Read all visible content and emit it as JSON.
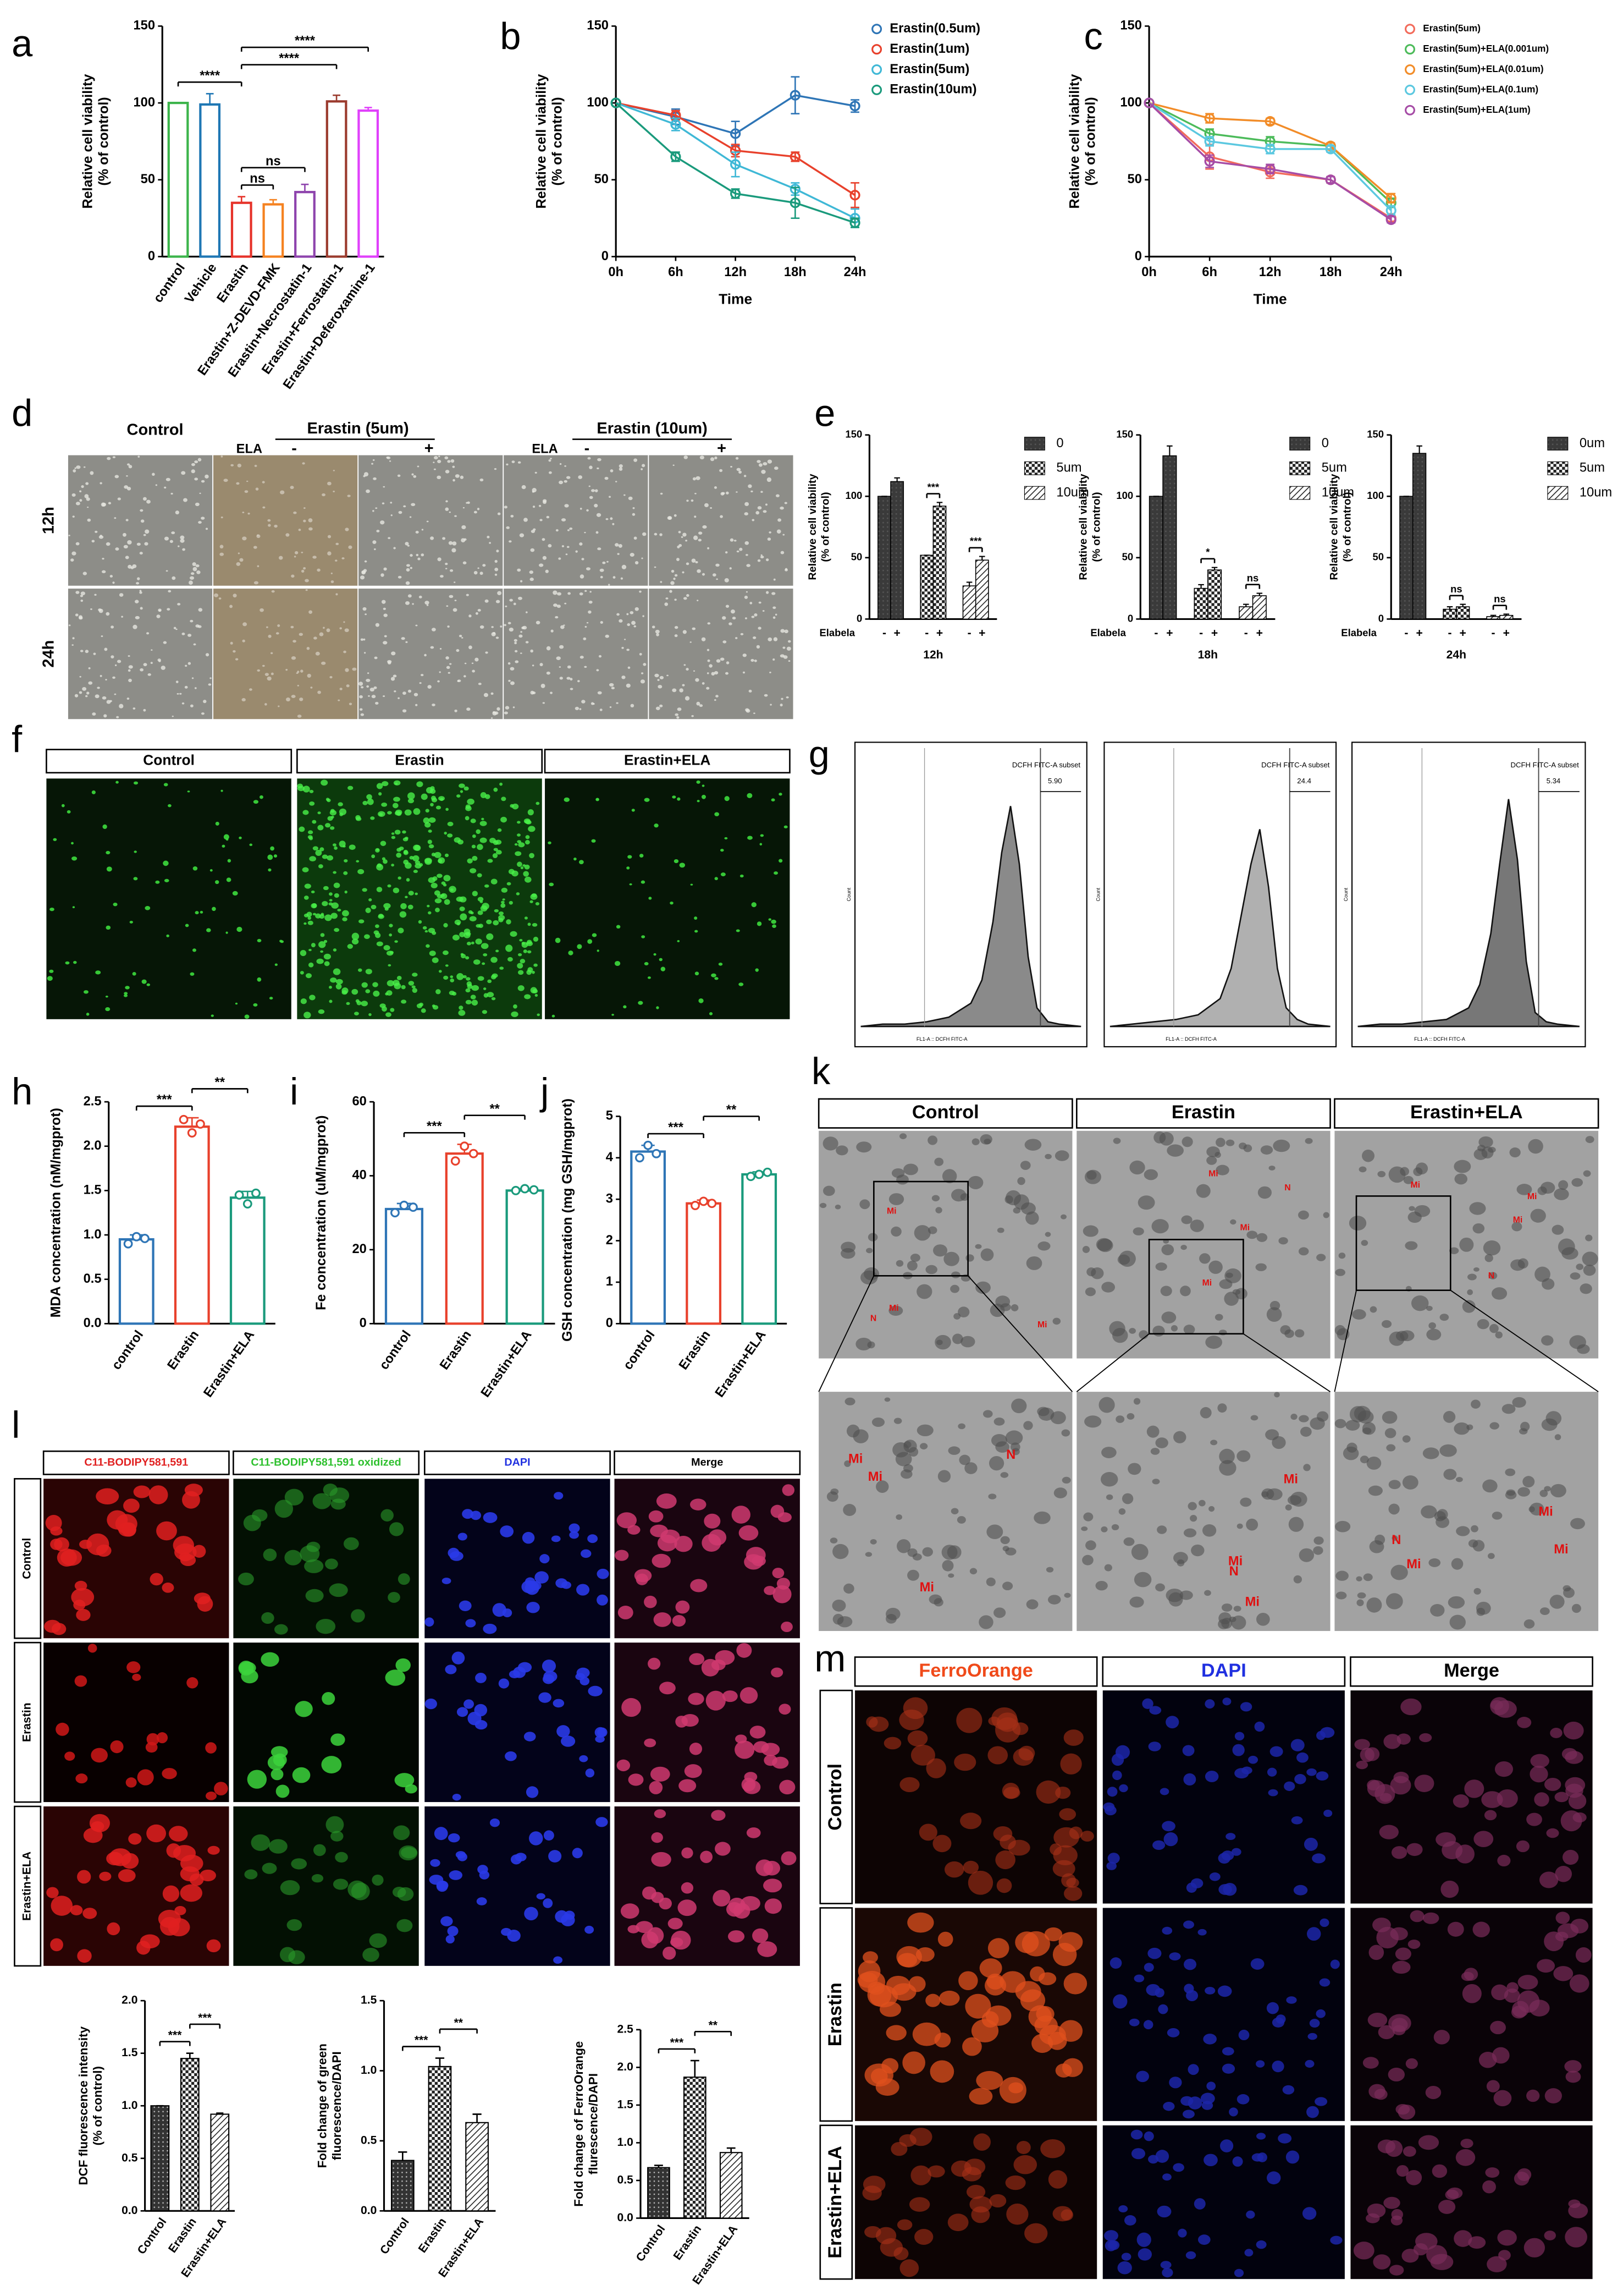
{
  "chart_data": [
    {
      "panel": "a",
      "type": "bar",
      "bar_style": "outline",
      "categories": [
        "control",
        "Vehicle",
        "Erastin",
        "Erastin+Z-DEVD-FMK",
        "Erastin+Necrostatin-1",
        "Erastin+Ferrostatin-1",
        "Erastin+Deferoxamine-1"
      ],
      "values": [
        100,
        99,
        35,
        34,
        42,
        101,
        95
      ],
      "errors": [
        0,
        7,
        4,
        3,
        5,
        4,
        2
      ],
      "colors": [
        "#3cb44b",
        "#1f77b4",
        "#e6332a",
        "#f58220",
        "#8e44ad",
        "#9b3b2e",
        "#e040fb"
      ],
      "ylim": [
        0,
        150
      ],
      "yticks": [
        0,
        50,
        100,
        150
      ],
      "ylabel": [
        "Relative cell viability",
        "(% of control)"
      ],
      "annotations": [
        {
          "text": "ns",
          "between": [
            2,
            3
          ]
        },
        {
          "text": "ns",
          "between": [
            2,
            4
          ]
        },
        {
          "text": "****",
          "between": [
            0,
            2
          ]
        },
        {
          "text": "****",
          "between": [
            2,
            5
          ]
        },
        {
          "text": "****",
          "between": [
            2,
            6
          ]
        }
      ]
    },
    {
      "panel": "b",
      "type": "line",
      "categories": [
        "0h",
        "6h",
        "12h",
        "18h",
        "24h"
      ],
      "xlabel": "Time",
      "ylabel": [
        "Relative cell viability",
        "(% of control)"
      ],
      "ylim": [
        0,
        150
      ],
      "yticks": [
        0,
        50,
        100,
        150
      ],
      "series": [
        {
          "name": "Erastin(0.5um)",
          "color": "#2e75b6",
          "values": [
            100,
            91,
            80,
            105,
            98
          ],
          "errors": [
            0,
            5,
            8,
            12,
            4
          ]
        },
        {
          "name": "Erastin(1um)",
          "color": "#e8412c",
          "values": [
            100,
            92,
            69,
            65,
            40
          ],
          "errors": [
            0,
            3,
            4,
            3,
            8
          ]
        },
        {
          "name": "Erastin(5um)",
          "color": "#3fb8d6",
          "values": [
            100,
            86,
            60,
            44,
            25
          ],
          "errors": [
            0,
            4,
            8,
            4,
            6
          ]
        },
        {
          "name": "Erastin(10um)",
          "color": "#1a9a7c",
          "values": [
            100,
            65,
            41,
            35,
            22
          ],
          "errors": [
            0,
            3,
            3,
            10,
            3
          ]
        }
      ]
    },
    {
      "panel": "c",
      "type": "line",
      "categories": [
        "0h",
        "6h",
        "12h",
        "18h",
        "24h"
      ],
      "xlabel": "Time",
      "ylabel": [
        "Relative cell viability",
        "(% of control)"
      ],
      "ylim": [
        0,
        150
      ],
      "yticks": [
        0,
        50,
        100,
        150
      ],
      "series": [
        {
          "name": "Erastin(5um)",
          "color": "#f26b5b",
          "values": [
            100,
            65,
            55,
            50,
            25
          ],
          "errors": [
            0,
            8,
            4,
            2,
            2
          ]
        },
        {
          "name": "Erastin(5um)+ELA(0.001um)",
          "color": "#4cbb5a",
          "values": [
            100,
            80,
            75,
            72,
            35
          ],
          "errors": [
            0,
            3,
            3,
            2,
            3
          ]
        },
        {
          "name": "Erastin(5um)+ELA(0.01um)",
          "color": "#f28c28",
          "values": [
            100,
            90,
            88,
            72,
            38
          ],
          "errors": [
            0,
            3,
            2,
            2,
            3
          ]
        },
        {
          "name": "Erastin(5um)+ELA(0.1um)",
          "color": "#5bc8e0",
          "values": [
            100,
            75,
            70,
            70,
            30
          ],
          "errors": [
            0,
            3,
            3,
            2,
            3
          ]
        },
        {
          "name": "Erastin(5um)+ELA(1um)",
          "color": "#a64ca6",
          "values": [
            100,
            62,
            57,
            50,
            24
          ],
          "errors": [
            0,
            4,
            3,
            2,
            2
          ]
        }
      ]
    },
    {
      "panel": "e",
      "type": "grouped_bar",
      "categories": [
        "-",
        "+"
      ],
      "group_label": "Elabela",
      "xlabel": "12h",
      "ylabel": [
        "Relative cell viability",
        "(% of control)"
      ],
      "ylim": [
        0,
        150
      ],
      "yticks": [
        0,
        50,
        100,
        150
      ],
      "series": [
        {
          "name": "0",
          "fill": "solid",
          "values": [
            100,
            112
          ],
          "errors": [
            0,
            3
          ]
        },
        {
          "name": "5um",
          "fill": "checker",
          "values": [
            52,
            92
          ],
          "errors": [
            0,
            3
          ]
        },
        {
          "name": "10um",
          "fill": "hatch",
          "values": [
            27,
            48
          ],
          "errors": [
            3,
            3
          ]
        }
      ],
      "annotations": [
        {
          "text": "***",
          "series": 1
        },
        {
          "text": "***",
          "series": 2
        }
      ]
    },
    {
      "type": "grouped_bar",
      "categories": [
        "-",
        "+"
      ],
      "group_label": "Elabela",
      "xlabel": "18h",
      "ylabel": [
        "Relative cell viability",
        "(% of control)"
      ],
      "ylim": [
        0,
        150
      ],
      "yticks": [
        0,
        50,
        100,
        150
      ],
      "series": [
        {
          "name": "0",
          "fill": "solid",
          "values": [
            100,
            133
          ],
          "errors": [
            0,
            8
          ]
        },
        {
          "name": "5um",
          "fill": "checker",
          "values": [
            25,
            40
          ],
          "errors": [
            3,
            2
          ]
        },
        {
          "name": "10um",
          "fill": "hatch",
          "values": [
            10,
            19
          ],
          "errors": [
            2,
            2
          ]
        }
      ],
      "annotations": [
        {
          "text": "*",
          "series": 1
        },
        {
          "text": "ns",
          "series": 2
        }
      ]
    },
    {
      "type": "grouped_bar",
      "categories": [
        "-",
        "+"
      ],
      "group_label": "Elabela",
      "xlabel": "24h",
      "ylabel": [
        "Relative cell viability",
        "(% of control)"
      ],
      "ylim": [
        0,
        150
      ],
      "yticks": [
        0,
        50,
        100,
        150
      ],
      "series": [
        {
          "name": "0um",
          "fill": "solid",
          "values": [
            100,
            135
          ],
          "errors": [
            0,
            6
          ]
        },
        {
          "name": "5um",
          "fill": "checker",
          "values": [
            8,
            10
          ],
          "errors": [
            2,
            2
          ]
        },
        {
          "name": "10um",
          "fill": "hatch",
          "values": [
            2,
            3
          ],
          "errors": [
            1,
            1
          ]
        }
      ],
      "annotations": [
        {
          "text": "ns",
          "series": 1
        },
        {
          "text": "ns",
          "series": 2
        }
      ]
    },
    {
      "panel": "g",
      "type": "area",
      "color": "#8a8a8a",
      "xlabel": "FL1-A :: DCFH FITC-A",
      "ylabel": "Count",
      "gate_label": "DCFH FITC-A subset",
      "gate_value": "5.90",
      "xlim": [
        0,
        1000
      ],
      "ylim": [
        0,
        100
      ],
      "x": [
        0,
        100,
        200,
        300,
        400,
        500,
        550,
        600,
        640,
        680,
        720,
        760,
        800,
        850,
        900,
        1000
      ],
      "values": [
        0,
        1,
        1,
        2,
        4,
        10,
        20,
        45,
        75,
        95,
        70,
        30,
        8,
        2,
        1,
        0
      ]
    },
    {
      "type": "area",
      "color": "#b0b0b0",
      "xlabel": "FL1-A :: DCFH FITC-A",
      "ylabel": "Count",
      "gate_label": "DCFH FITC-A subset",
      "gate_value": "24.4",
      "xlim": [
        0,
        1000
      ],
      "ylim": [
        0,
        100
      ],
      "x": [
        0,
        100,
        200,
        300,
        400,
        500,
        550,
        600,
        640,
        680,
        720,
        760,
        800,
        850,
        900,
        1000
      ],
      "values": [
        0,
        1,
        2,
        3,
        5,
        12,
        25,
        50,
        70,
        85,
        60,
        25,
        8,
        3,
        1,
        0
      ]
    },
    {
      "type": "area",
      "color": "#777777",
      "xlabel": "FL1-A :: DCFH FITC-A",
      "ylabel": "Count",
      "gate_label": "DCFH FITC-A subset",
      "gate_value": "5.34",
      "xlim": [
        0,
        1000
      ],
      "ylim": [
        0,
        100
      ],
      "x": [
        0,
        100,
        200,
        300,
        400,
        500,
        550,
        600,
        640,
        680,
        720,
        760,
        800,
        850,
        900,
        1000
      ],
      "values": [
        0,
        1,
        1,
        2,
        3,
        8,
        18,
        40,
        70,
        98,
        72,
        28,
        6,
        2,
        1,
        0
      ]
    },
    {
      "panel": "h",
      "type": "bar",
      "bar_style": "outline",
      "categories": [
        "control",
        "Erastin",
        "Erastin+ELA"
      ],
      "values": [
        0.95,
        2.22,
        1.42
      ],
      "errors": [
        0.05,
        0.1,
        0.07
      ],
      "points": [
        [
          0.9,
          0.98,
          0.96
        ],
        [
          2.3,
          2.15,
          2.25
        ],
        [
          1.45,
          1.35,
          1.47
        ]
      ],
      "colors": [
        "#2e75b6",
        "#e8412c",
        "#1a9a7c"
      ],
      "ylim": [
        0,
        2.5
      ],
      "yticks": [
        {
          "value": 0,
          "label": "0.0"
        },
        0.5,
        {
          "value": 1,
          "label": "1.0"
        },
        1.5,
        {
          "value": 2,
          "label": "2.0"
        },
        2.5
      ],
      "ylabel": [
        "MDA concentration (nM/mgprot)"
      ],
      "annotations": [
        {
          "text": "***",
          "between": [
            0,
            1
          ]
        },
        {
          "text": "**",
          "between": [
            1,
            2
          ]
        }
      ]
    },
    {
      "panel": "i",
      "type": "bar",
      "bar_style": "outline",
      "categories": [
        "control",
        "Erastin",
        "Erastin+ELA"
      ],
      "values": [
        31,
        46,
        36
      ],
      "errors": [
        1.5,
        2.5,
        0.5
      ],
      "points": [
        [
          30,
          32,
          31.5
        ],
        [
          44,
          48,
          46
        ],
        [
          36,
          36.5,
          36.2
        ]
      ],
      "colors": [
        "#2e75b6",
        "#e8412c",
        "#1a9a7c"
      ],
      "ylim": [
        0,
        60
      ],
      "yticks": [
        0,
        20,
        40,
        60
      ],
      "ylabel": [
        "Fe concentration (uM/mgprot)"
      ],
      "annotations": [
        {
          "text": "***",
          "between": [
            0,
            1
          ]
        },
        {
          "text": "**",
          "between": [
            1,
            2
          ]
        }
      ]
    },
    {
      "panel": "j",
      "type": "bar",
      "bar_style": "outline",
      "categories": [
        "control",
        "Erastin",
        "Erastin+ELA"
      ],
      "values": [
        4.15,
        2.9,
        3.6
      ],
      "errors": [
        0.15,
        0.08,
        0.06
      ],
      "points": [
        [
          4.0,
          4.3,
          4.1
        ],
        [
          2.85,
          2.95,
          2.9
        ],
        [
          3.55,
          3.6,
          3.65
        ]
      ],
      "colors": [
        "#2e75b6",
        "#e8412c",
        "#1a9a7c"
      ],
      "ylim": [
        0,
        5
      ],
      "yticks": [
        0,
        1,
        2,
        3,
        4,
        5
      ],
      "ylabel": [
        "GSH concentration (mg GSH/mgprot)"
      ],
      "annotations": [
        {
          "text": "***",
          "between": [
            0,
            1
          ]
        },
        {
          "text": "**",
          "between": [
            1,
            2
          ]
        }
      ]
    },
    {
      "type": "bar",
      "bar_style": "pattern",
      "fills": [
        "dots",
        "checker",
        "hatch"
      ],
      "categories": [
        "Control",
        "Erastin",
        "Erastin+ELA"
      ],
      "values": [
        1.0,
        1.45,
        0.92
      ],
      "errors": [
        0,
        0.05,
        0.01
      ],
      "ylim": [
        0,
        2
      ],
      "yticks": [
        {
          "value": 0,
          "label": "0.0"
        },
        0.5,
        {
          "value": 1,
          "label": "1.0"
        },
        1.5,
        {
          "value": 2,
          "label": "2.0"
        }
      ],
      "ylabel": [
        "DCF fluorescence intensity",
        "(% of control)"
      ],
      "annotations": [
        {
          "text": "***",
          "between": [
            0,
            1
          ]
        },
        {
          "text": "***",
          "between": [
            1,
            2
          ]
        }
      ]
    },
    {
      "type": "bar",
      "bar_style": "pattern",
      "fills": [
        "dots",
        "checker",
        "hatch"
      ],
      "categories": [
        "Control",
        "Erastin",
        "Erastin+ELA"
      ],
      "values": [
        0.36,
        1.03,
        0.63
      ],
      "errors": [
        0.06,
        0.06,
        0.06
      ],
      "ylim": [
        0,
        1.5
      ],
      "yticks": [
        {
          "value": 0,
          "label": "0.0"
        },
        0.5,
        {
          "value": 1,
          "label": "1.0"
        },
        1.5
      ],
      "ylabel": [
        "Fold change of green",
        "fluorescence/DAPI"
      ],
      "annotations": [
        {
          "text": "***",
          "between": [
            0,
            1
          ]
        },
        {
          "text": "**",
          "between": [
            1,
            2
          ]
        }
      ]
    },
    {
      "type": "bar",
      "bar_style": "pattern",
      "fills": [
        "dots",
        "checker",
        "hatch"
      ],
      "categories": [
        "Control",
        "Erastin",
        "Erastin+ELA"
      ],
      "values": [
        0.67,
        1.87,
        0.87
      ],
      "errors": [
        0.03,
        0.22,
        0.06
      ],
      "ylim": [
        0,
        2.5
      ],
      "yticks": [
        {
          "value": 0,
          "label": "0.0"
        },
        0.5,
        {
          "value": 1,
          "label": "1.0"
        },
        1.5,
        {
          "value": 2,
          "label": "2.0"
        },
        2.5
      ],
      "ylabel": [
        "Fold change of FerroOrange",
        "flurescence/DAPI"
      ],
      "annotations": [
        {
          "text": "***",
          "between": [
            0,
            1
          ]
        },
        {
          "text": "**",
          "between": [
            1,
            2
          ]
        }
      ]
    }
  ],
  "image_panels": [
    {
      "panel": "d",
      "headers": [
        "Control",
        "Erastin (5um)",
        "Erastin (10um)"
      ],
      "treatment": "ELA",
      "signs": [
        "-",
        "+"
      ],
      "rows": [
        "12h",
        "24h"
      ]
    },
    {
      "panel": "f",
      "columns": [
        "Control",
        "Erastin",
        "Erastin+ELA"
      ]
    },
    {
      "panel": "k",
      "columns": [
        "Control",
        "Erastin",
        "Erastin+ELA"
      ],
      "markers": [
        "N",
        "Mi"
      ]
    },
    {
      "panel": "l",
      "columns": [
        "C11-BODIPY581,591",
        "C11-BODIPY581,591 oxidized",
        "DAPI",
        "Merge"
      ],
      "column_colors": [
        "#e02020",
        "#2ec02e",
        "#2030e0",
        "#000000"
      ],
      "rows": [
        "Control",
        "Erastin",
        "Erastin+ELA"
      ]
    },
    {
      "panel": "m",
      "columns": [
        "FerroOrange",
        "DAPI",
        "Merge"
      ],
      "column_colors": [
        "#f04a1a",
        "#2030e0",
        "#000000"
      ],
      "rows": [
        "Control",
        "Erastin",
        "Erastin+ELA"
      ]
    }
  ]
}
